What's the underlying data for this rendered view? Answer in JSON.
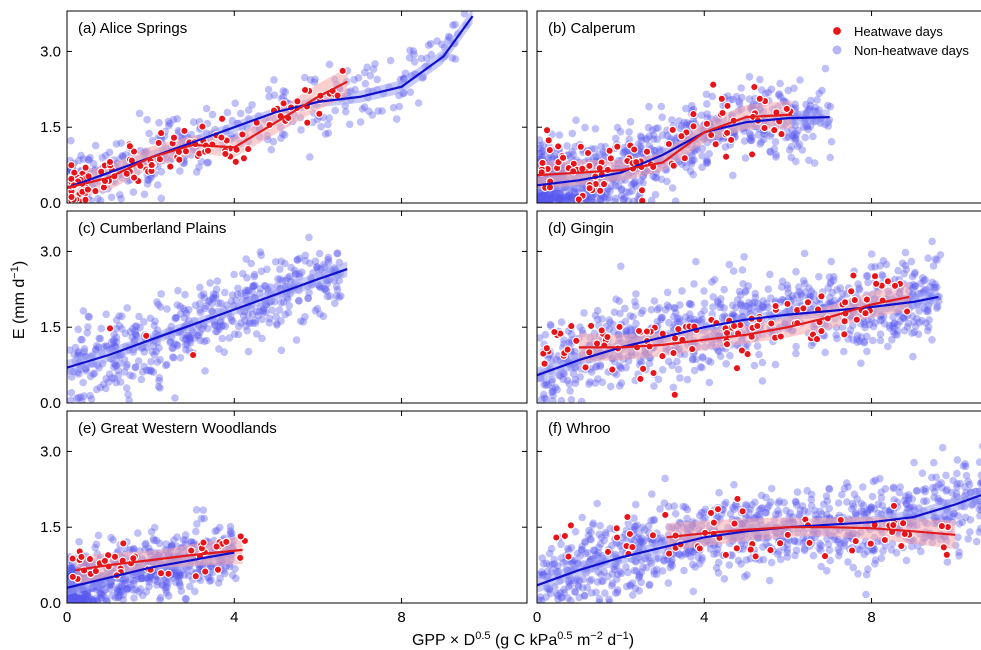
{
  "figure": {
    "xlabel_main": "GPP ×  D",
    "xlabel_exp": "0.5",
    "xlabel_unit_pre": " (g C kPa",
    "xlabel_unit_exp1": "0.5",
    "xlabel_unit_mid": " m",
    "xlabel_unit_exp2": "−2",
    "xlabel_unit_mid2": " d",
    "xlabel_unit_exp3": "−1",
    "xlabel_unit_end": ")",
    "ylabel_main": "E (mm d",
    "ylabel_exp": "−1",
    "ylabel_end": ")",
    "legend": {
      "heatwave": "Heatwave days",
      "nonheatwave": "Non-heatwave days"
    },
    "colors": {
      "heatwave_point": "#e8141a",
      "heatwave_line": "#e31a1c",
      "heatwave_band": "#f7a8a8",
      "non_point": "#5a5af0",
      "non_line": "#1010cc",
      "non_band": "#9aa0f0"
    }
  },
  "chart_data": [
    {
      "type": "scatter",
      "panel": "a",
      "title": "(a) Alice Springs",
      "xlim": [
        0,
        11
      ],
      "ylim": [
        0,
        3.8
      ],
      "xticks": [
        "0",
        "4",
        "8"
      ],
      "yticks": [
        "0.0",
        "1.5",
        "3.0"
      ],
      "show_xticklabels": false,
      "show_yticklabels": true,
      "series": [
        {
          "name": "Non-heatwave days",
          "fit_x": [
            0,
            1,
            2,
            3,
            4,
            5,
            6,
            7,
            8,
            9,
            9.7
          ],
          "fit_y": [
            0.3,
            0.6,
            0.9,
            1.2,
            1.5,
            1.8,
            2.0,
            2.1,
            2.3,
            2.9,
            3.7
          ]
        },
        {
          "name": "Heatwave days",
          "fit_x": [
            0,
            1,
            2,
            3,
            4,
            5,
            6,
            6.7
          ],
          "fit_y": [
            0.3,
            0.5,
            0.9,
            1.15,
            1.1,
            1.6,
            2.1,
            2.4
          ]
        }
      ],
      "gen": {
        "n_non": 420,
        "non_xmax": 9.5,
        "non_xshape": 1.6,
        "non_noise": 0.32,
        "n_hw": 130,
        "hw_xmax": 6.5,
        "hw_xshape": 2.2,
        "hw_noise": 0.2
      }
    },
    {
      "type": "scatter",
      "panel": "b",
      "title": "(b) Calperum",
      "xlim": [
        0,
        11
      ],
      "ylim": [
        0,
        3.8
      ],
      "xticks": [
        "0",
        "4",
        "8"
      ],
      "yticks": [
        "0.0",
        "1.5",
        "3.0"
      ],
      "show_xticklabels": false,
      "show_yticklabels": false,
      "series": [
        {
          "name": "Non-heatwave days",
          "fit_x": [
            0,
            1,
            2,
            3,
            4,
            5,
            6,
            7
          ],
          "fit_y": [
            0.35,
            0.45,
            0.6,
            0.95,
            1.4,
            1.6,
            1.68,
            1.7
          ]
        },
        {
          "name": "Heatwave days",
          "fit_x": [
            0,
            1,
            2,
            3,
            4,
            5,
            6.1
          ],
          "fit_y": [
            0.55,
            0.6,
            0.65,
            0.8,
            1.4,
            1.7,
            1.75
          ]
        }
      ],
      "gen": {
        "n_non": 900,
        "non_xmax": 7.0,
        "non_xshape": 1.8,
        "non_noise": 0.38,
        "n_hw": 90,
        "hw_xmax": 6.0,
        "hw_xshape": 1.4,
        "hw_noise": 0.3
      }
    },
    {
      "type": "scatter",
      "panel": "c",
      "title": "(c) Cumberland Plains",
      "xlim": [
        0,
        11
      ],
      "ylim": [
        0,
        3.8
      ],
      "xticks": [
        "0",
        "4",
        "8"
      ],
      "yticks": [
        "0.0",
        "1.5",
        "3.0"
      ],
      "show_xticklabels": false,
      "show_yticklabels": true,
      "series": [
        {
          "name": "Non-heatwave days",
          "fit_x": [
            0,
            1,
            2,
            3,
            4,
            5,
            6,
            6.7
          ],
          "fit_y": [
            0.7,
            0.95,
            1.25,
            1.55,
            1.85,
            2.15,
            2.45,
            2.65
          ]
        },
        {
          "name": "Heatwave days",
          "fit_x": [],
          "fit_y": []
        }
      ],
      "gen": {
        "n_non": 520,
        "non_xmax": 6.5,
        "non_xshape": 1.0,
        "non_noise": 0.4,
        "n_hw": 3,
        "hw_xmax": 4.2,
        "hw_xshape": 1.0,
        "hw_noise": 0.3
      }
    },
    {
      "type": "scatter",
      "panel": "d",
      "title": "(d) Gingin",
      "xlim": [
        0,
        11
      ],
      "ylim": [
        0,
        3.8
      ],
      "xticks": [
        "0",
        "4",
        "8"
      ],
      "yticks": [
        "0.0",
        "1.5",
        "3.0"
      ],
      "show_xticklabels": false,
      "show_yticklabels": false,
      "series": [
        {
          "name": "Non-heatwave days",
          "fit_x": [
            0,
            1,
            2,
            3,
            4,
            5,
            6,
            7,
            8,
            9,
            9.6
          ],
          "fit_y": [
            0.55,
            0.85,
            1.1,
            1.3,
            1.5,
            1.65,
            1.75,
            1.82,
            1.9,
            2.0,
            2.1
          ]
        },
        {
          "name": "Heatwave days",
          "fit_x": [
            1.0,
            2,
            3,
            4,
            5,
            6,
            7,
            8,
            8.9
          ],
          "fit_y": [
            1.1,
            1.1,
            1.15,
            1.25,
            1.35,
            1.5,
            1.7,
            1.95,
            2.1
          ]
        }
      ],
      "gen": {
        "n_non": 850,
        "non_xmax": 9.6,
        "non_xshape": 1.0,
        "non_noise": 0.42,
        "n_hw": 110,
        "hw_xmax": 8.8,
        "hw_xshape": 1.0,
        "hw_noise": 0.32
      }
    },
    {
      "type": "scatter",
      "panel": "e",
      "title": "(e) Great Western Woodlands",
      "xlim": [
        0,
        11
      ],
      "ylim": [
        0,
        3.8
      ],
      "xticks": [
        "0",
        "4",
        "8"
      ],
      "yticks": [
        "0.0",
        "1.5",
        "3.0"
      ],
      "show_xticklabels": true,
      "show_yticklabels": true,
      "series": [
        {
          "name": "Non-heatwave days",
          "fit_x": [
            0,
            1,
            2,
            3,
            4
          ],
          "fit_y": [
            0.3,
            0.5,
            0.7,
            0.85,
            1.0
          ]
        },
        {
          "name": "Heatwave days",
          "fit_x": [
            0.2,
            1,
            2,
            3,
            4.2
          ],
          "fit_y": [
            0.65,
            0.75,
            0.85,
            0.95,
            1.05
          ]
        }
      ],
      "gen": {
        "n_non": 650,
        "non_xmax": 4.0,
        "non_xshape": 1.5,
        "non_noise": 0.3,
        "n_hw": 45,
        "hw_xmax": 4.2,
        "hw_xshape": 1.2,
        "hw_noise": 0.25
      }
    },
    {
      "type": "scatter",
      "panel": "f",
      "title": "(f) Whroo",
      "xlim": [
        0,
        11
      ],
      "ylim": [
        0,
        3.8
      ],
      "xticks": [
        "0",
        "4",
        "8"
      ],
      "yticks": [
        "0.0",
        "1.5",
        "3.0"
      ],
      "show_xticklabels": true,
      "show_yticklabels": false,
      "series": [
        {
          "name": "Non-heatwave days",
          "fit_x": [
            0,
            1,
            2,
            3,
            4,
            5,
            6,
            7,
            8,
            9,
            10,
            11
          ],
          "fit_y": [
            0.35,
            0.65,
            0.9,
            1.1,
            1.3,
            1.42,
            1.5,
            1.55,
            1.6,
            1.7,
            1.95,
            2.25
          ]
        },
        {
          "name": "Heatwave days",
          "fit_x": [
            3.1,
            4,
            5,
            6,
            7,
            8,
            9,
            10
          ],
          "fit_y": [
            1.3,
            1.38,
            1.45,
            1.5,
            1.5,
            1.48,
            1.42,
            1.35
          ]
        }
      ],
      "gen": {
        "n_non": 1000,
        "non_xmax": 10.8,
        "non_xshape": 1.0,
        "non_noise": 0.4,
        "n_hw": 60,
        "hw_xmax": 10.0,
        "hw_xshape": 1.0,
        "hw_noise": 0.28
      }
    }
  ]
}
